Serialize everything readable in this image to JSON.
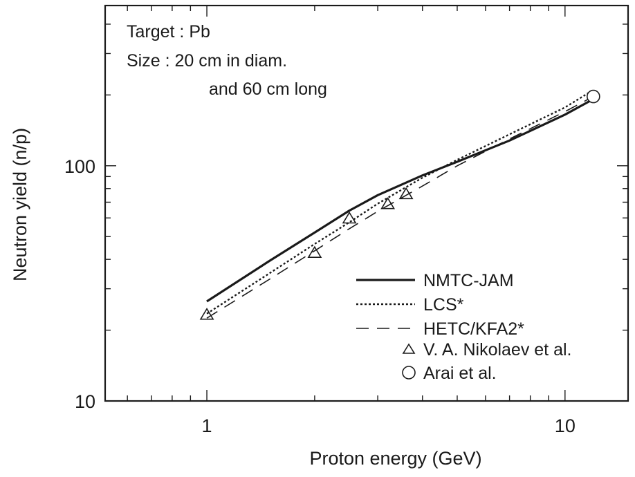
{
  "chart_data": {
    "type": "line",
    "xlabel": "Proton energy (GeV)",
    "ylabel": "Neutron yield (n/p)",
    "xscale": "log",
    "yscale": "log",
    "xlim": [
      0.52,
      15
    ],
    "ylim": [
      10,
      480
    ],
    "x_ticks": [
      {
        "value": 1,
        "label": "1"
      },
      {
        "value": 10,
        "label": "10"
      }
    ],
    "y_ticks": [
      {
        "value": 10,
        "label": "10"
      },
      {
        "value": 100,
        "label": "100"
      }
    ],
    "annotation": [
      "Target : Pb",
      "Size :  20 cm in diam.",
      "and 60 cm long"
    ],
    "legend_position": "lower-right",
    "series": [
      {
        "name": "NMTC-JAM",
        "style": "solid",
        "x": [
          1.0,
          1.5,
          2.0,
          2.5,
          3.0,
          4.0,
          5.0,
          7.0,
          10.0,
          12.0
        ],
        "y": [
          26.5,
          39.5,
          52.0,
          64.5,
          75.0,
          91.0,
          104.0,
          128.0,
          165.0,
          192.0
        ]
      },
      {
        "name": "LCS*",
        "style": "dotted",
        "x": [
          1.0,
          1.5,
          2.0,
          2.5,
          3.0,
          4.0,
          5.0,
          7.0,
          10.0,
          12.0
        ],
        "y": [
          23.5,
          35.0,
          46.5,
          57.5,
          69.0,
          89.0,
          106.0,
          136.0,
          177.0,
          210.0
        ]
      },
      {
        "name": "HETC/KFA2*",
        "style": "dashed",
        "x": [
          1.0,
          1.5,
          2.0,
          2.5,
          3.0,
          4.0,
          5.0,
          7.0,
          10.0,
          12.0
        ],
        "y": [
          22.5,
          33.0,
          43.5,
          54.0,
          64.0,
          82.0,
          100.0,
          130.0,
          170.0,
          197.0
        ]
      },
      {
        "name": "V. A. Nikolaev et al.",
        "style": "marker-triangle",
        "x": [
          1.0,
          2.0,
          2.5,
          3.2,
          3.6
        ],
        "y": [
          23.2,
          42.5,
          59.5,
          68.5,
          75.5
        ]
      },
      {
        "name": "Arai et al.",
        "style": "marker-circle",
        "x": [
          12.0
        ],
        "y": [
          197.0
        ]
      }
    ]
  }
}
